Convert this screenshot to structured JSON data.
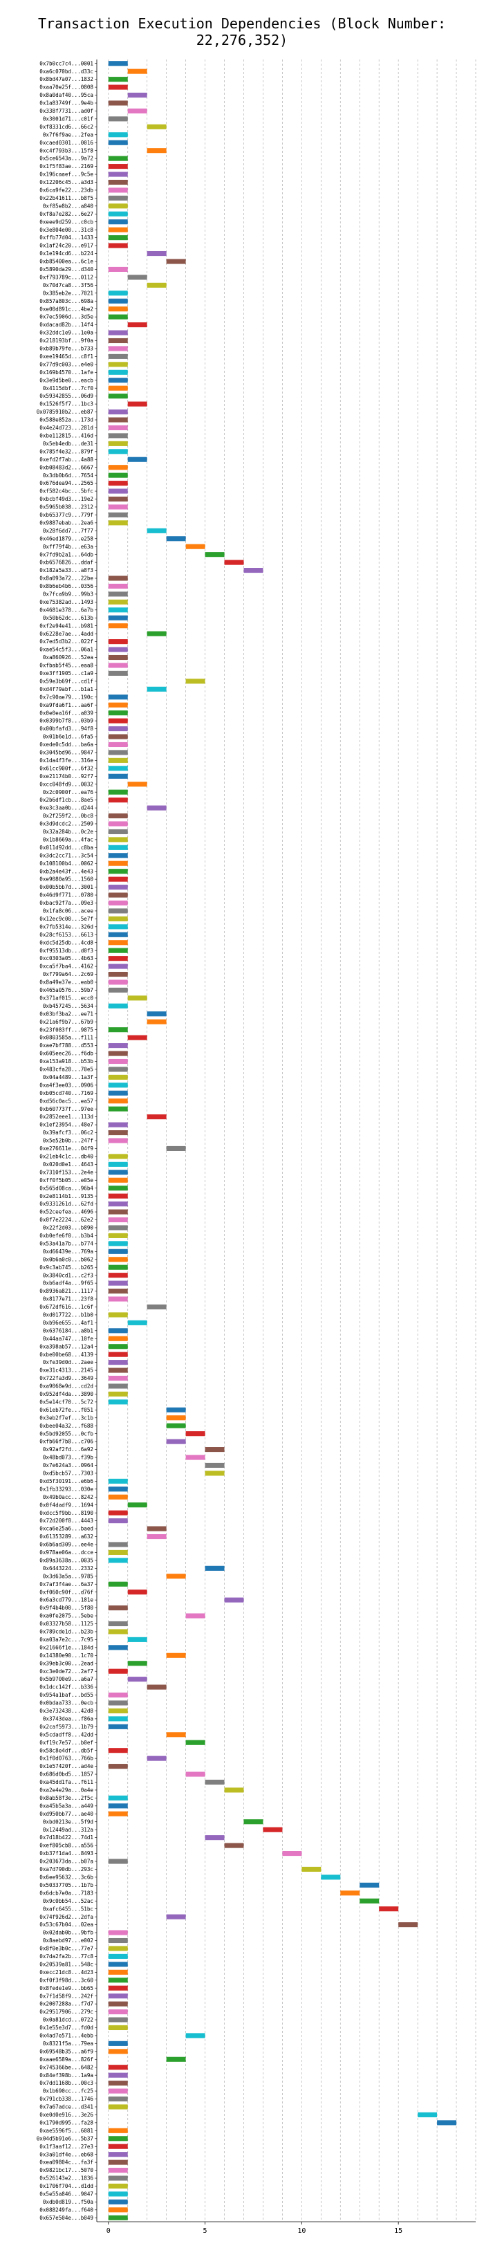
{
  "chart_data": {
    "type": "bar",
    "orientation": "horizontal",
    "title": "Transaction Execution Dependencies (Block Number: 22,276,352)",
    "xlabel": "",
    "ylabel": "",
    "xlim": [
      -0.6,
      19
    ],
    "xticks": [
      0,
      5,
      10,
      15
    ],
    "grid": true,
    "palette": [
      "#1f77b4",
      "#ff7f0e",
      "#2ca02c",
      "#d62728",
      "#9467bd",
      "#8c564b",
      "#e377c2",
      "#7f7f7f",
      "#bcbd22",
      "#17becf"
    ],
    "categories": [
      "0x7b0cc7c4...0001",
      "0xa6c070bd...d33c",
      "0x8bd47a07...1832",
      "0xaa70e25f...0808",
      "0x8a0daf40...95ca",
      "0x1a83749f...9e4b",
      "0x338f7731...ad0f",
      "0x3001d71...c01f",
      "0xf8331cd6...66c2",
      "0x7f6f9ae...2fea",
      "0xcaed0301...0016",
      "0xc4f793b3...15f8",
      "0x5ce6543a...9a72",
      "0x1f5f83ae...2169",
      "0x196caaef...9c5e",
      "0x12206c45...a3d3",
      "0x6ca9fe22...23db",
      "0x22b41611...b8f5",
      "0xf85e8b2...a840",
      "0xf8a7e282...6e27",
      "0xeee9d259...c0cb",
      "0x3e804e00...31c8",
      "0xffb77d04...1433",
      "0x1af24c20...e917",
      "0x1e194cd6...b224",
      "0xb85400ea...6c1e",
      "0x5890da29...d340",
      "0xf793789c...0112",
      "0x70d7ca8...3f56",
      "0x385eb2e...7021",
      "0x857a803c...698a",
      "0xe00d891c...4be2",
      "0x7ec5906d...3d5e",
      "0xdacad82b...14f4",
      "0x32ddc1e9...1e0a",
      "0x218193bf...9f0a",
      "0xb89b79fe...b733",
      "0xee19465d...c8f1",
      "0x77d9c003...e4e0",
      "0x169b4570...1afe",
      "0x3e9d5be0...eacb",
      "0x4115dbf...7cf0",
      "0x59342855...06d9",
      "0x1526f5f7...1bc3",
      "0x0785910b2...eb87",
      "0x588e852a...173d",
      "0x4e24d723...281d",
      "0xbe112815...416d",
      "0x5eb4edb...de31",
      "0x785f4e32...879f",
      "0xefd2f7ab...4a88",
      "0xb08483d2...6667",
      "0x3db0b6d...7654",
      "0x676dea94...2565",
      "0xf582c4bc...5bfc",
      "0xbcbf49d3...19e2",
      "0x5965b038...2312",
      "0xb65377c9...779f",
      "0x9887ebab...2ea6",
      "0x28f6dd7...7f77",
      "0x46ed1879...e258",
      "0xff79f4b...e63a",
      "0x7fd9b2a1...64db",
      "0xb6576826...ddaf",
      "0x182a5a33...a8f3",
      "0x8a093a72...22be",
      "0x8b6eb4b6...0356",
      "0x7fca9b9...99b3",
      "0xe75382ad...1493",
      "0x4681e378...6a7b",
      "0x50b62dc...613b",
      "0xf2e94e41...b981",
      "0x6228e7ae...4add",
      "0x7ed5d3b2...022f",
      "0xae54c5f3...06a1",
      "0xa860926...52ea",
      "0xfbab5f45...eaa8",
      "0xe3ff1905...c1a9",
      "0x59e3b69f...cd1f",
      "0xd4f79abf...b1a1",
      "0x7c90ae79...190c",
      "0xa9fda6f1...aa6f",
      "0x0e0ea16f...a039",
      "0x0399b7f8...03b9",
      "0x00bfafd3...94f8",
      "0x01b6e1d...6fa5",
      "0xede0c5dd...ba6a",
      "0x3045bd96...9847",
      "0x1da4f3fe...316e",
      "0x61cc900f...6f32",
      "0xe21174b0...92f7",
      "0xcc048fd9...0032",
      "0x2c0900f...ea76",
      "0x2b6df1cb...8ae5",
      "0xe3c3aa0b...d244",
      "0x2f259f2...0bc8",
      "0x3d9dcdc2...2509",
      "0x32a284b...0c2e",
      "0x1b8669a...4fac",
      "0x011d92dd...c8ba",
      "0x3dc2cc71...3c54",
      "0x108100b4...0062",
      "0xb2a4e43f...4e43",
      "0xe9080a95...1560",
      "0x00b5bb7d...3001",
      "0x46d9f771...0780",
      "0xbac92f7a...09e3",
      "0x1fa8c06...acee",
      "0x12ec9c00...5e7f",
      "0x7fb5314e...326d",
      "0x28cf6153...6613",
      "0xdc5d25db...4cd8",
      "0xf95513db...d0f3",
      "0xc0303a05...4b63",
      "0xca5f7ba4...4162",
      "0xf799a64...2c69",
      "0x8a49e37e...eab0",
      "0x465a0576...59b7",
      "0x371af015...ecc0",
      "0xb457245...5634",
      "0x03bf3ba2...ee71",
      "0x21a6f9b7...67b9",
      "0x23f083ff...9875",
      "0x0803585a...f111",
      "0xae7bf788...d553",
      "0x605eec26...f6db",
      "0xa153a918...b53b",
      "0x483cfa28...70e5",
      "0x04a4489...1a3f",
      "0xa4f3ee03...0906",
      "0xb05cd740...7169",
      "0xd56c0ac5...ea57",
      "0xb607737f...97ee",
      "0x2852eee1...113d",
      "0x1ef23954...48e7",
      "0x39afcf3...06c2",
      "0x5e52b0b...247f",
      "0xe276611e...04f9",
      "0x21eb4c1c...db40",
      "0x020d0e1...4643",
      "0x7310f153...2e4e",
      "0xff0f5b05...e05e",
      "0x565d08ca...96b4",
      "0x2e8114b1...9135",
      "0x9331261d...62fd",
      "0x52ceefea...4696",
      "0x0f7e2224...62e2",
      "0x22f2d03...b890",
      "0xb0efe6f0...b3b4",
      "0x53a41a7b...b774",
      "0xd66439e...769a",
      "0x0b6a0c0...b062",
      "0x9c3ab745...b265",
      "0x3840cd1...c2f3",
      "0xb6adf4a...9f65",
      "0x8936a821...1117",
      "0x8177e71...23f8",
      "0x672df616...1c6f",
      "0xd017722...b1b0",
      "0xb96e655...4af1",
      "0x6376184...a8b1",
      "0x44aa747...10fe",
      "0xa398ab57...12a4",
      "0xbe00be68...4139",
      "0xfe39d0d...2aee",
      "0xe31c4313...2145",
      "0x722fa3d9...3649",
      "0xa9068e9d...cd2d",
      "0x952df4da...3890",
      "0x5e14cf70...5c72",
      "0x61eb72fe...f051",
      "0x3eb2f7ef...3c1b",
      "0xbee04a32...f688",
      "0x5bd92055...0cfb",
      "0xfb66f7b8...c706",
      "0x92af2fd...6a92",
      "0x48bd073...f39b",
      "0x7e624a3...0964",
      "0xd5bcb57...7303",
      "0xd5f30191...e6b6",
      "0x1fb33293...030e",
      "0x49b0acc...8242",
      "0x0f4dadf9...1694",
      "0xdcc5f9bb...8190",
      "0x72d200f8...4443",
      "0xca6e25a6...baed",
      "0x61353289...a632",
      "0x6b6ad309...ee4e",
      "0x978ae06a...dcce",
      "0x89a3638a...0035",
      "0x6443224...2332",
      "0x3d63a5a...9785",
      "0x7af3f4ae...6a37",
      "0xf060c90f...d76f",
      "0x6a3cd779...181e",
      "0x9f4b4b00...5f80",
      "0xa0fe2075...5ebe",
      "0x03327b58...1125",
      "0x789cde1d...b23b",
      "0xa03a7e2c...7c95",
      "0x21666f1e...184d",
      "0x14380e90...1c70",
      "0x39eb3c00...2ead",
      "0xc3e0de72...2af7",
      "0x5b9700e9...a6a7",
      "0x1dcc142f...b336",
      "0x954a1baf...bd55",
      "0x0bdaa733...0ecb",
      "0x3e732438...42d8",
      "0x3743dea...f86a",
      "0x2caf5973...1b79",
      "0x5cdadff8...42dd",
      "0xf19c7e57...b0ef",
      "0x58c8e4df...db5f",
      "0x1f0d0763...766b",
      "0x1e57420f...ad4e",
      "0x686d0bd5...1857",
      "0xa45dd1fa...f611",
      "0xa2e4e29a...0a4e",
      "0x8ab58f3e...2f5c",
      "0xa45b5a3a...a449",
      "0xd950bb77...ae40",
      "0xbd0213e...5f9d",
      "0x12449ad...312a",
      "0x7d18b422...74d1",
      "0xef805cb8...a556",
      "0xb37f1da4...8493",
      "0x203673da...b07a",
      "0xa7d790db...293c",
      "0x6ee95632...3c6b",
      "0x50337705...1b7b",
      "0x6dcb7e0a...7183",
      "0x9c0bb54...52ac",
      "0xafc6455...51bc",
      "0x74f926d2...2dfa",
      "0x53c67b04...02ea",
      "0x02dab0b...9bfb",
      "0x8aebd97...e002",
      "0x8f0e3b0c...77e7",
      "0x7da2fa2b...77c8",
      "0x20539a81...548c",
      "0xecc21dc8...4d23",
      "0xf0f3f98d...3c60",
      "0x8fede1e9...bb65",
      "0x7f1d58f9...242f",
      "0x2007288a...f7d7",
      "0x29517906...279c",
      "0x0a81dcd...0722",
      "0x1e55e3d7...fd0d",
      "0x4ad7e571...4ebb",
      "0x8321f5a...79ea",
      "0x69548b35...a6f9",
      "0xaae6589a...826f",
      "0x745366be...6482",
      "0x84ef398b...1a9a",
      "0x7dd1168b...00c3",
      "0x1b690cc...fc25",
      "0x791cb338...1746",
      "0x7a67adce...d341",
      "0xe0d0e916...3e26",
      "0x1790d995...fa28",
      "0xae5596f5...6081",
      "0x04d5b91e6...5b37",
      "0x1f3aaf12...27e3",
      "0x3a01df4e...eb68",
      "0xea09804c...fa3f",
      "0x9821bc17...5070",
      "0x526143e2...1836",
      "0x1706f704...d1dd",
      "0x5e55a846...9047",
      "0xdb0d819...f50a",
      "0x088249fa...f640",
      "0x657e504e...b049"
    ],
    "start": [
      0,
      1,
      0,
      0,
      1,
      0,
      1,
      0,
      2,
      0,
      0,
      2,
      0,
      0,
      0,
      0,
      0,
      0,
      0,
      0,
      0,
      0,
      0,
      0,
      2,
      3,
      0,
      1,
      2,
      0,
      0,
      0,
      0,
      1,
      0,
      0,
      0,
      0,
      0,
      0,
      0,
      0,
      0,
      1,
      0,
      0,
      0,
      0,
      0,
      0,
      1,
      0,
      0,
      0,
      0,
      0,
      0,
      0,
      0,
      2,
      3,
      4,
      5,
      6,
      7,
      0,
      0,
      0,
      0,
      0,
      0,
      0,
      2,
      0,
      0,
      0,
      0,
      0,
      4,
      2,
      0,
      0,
      0,
      0,
      0,
      0,
      0,
      0,
      0,
      0,
      0,
      1,
      0,
      0,
      2,
      0,
      0,
      0,
      0,
      0,
      0,
      0,
      0,
      0,
      0,
      0,
      0,
      0,
      0,
      0,
      0,
      0,
      0,
      0,
      0,
      0,
      0,
      0,
      1,
      0,
      2,
      2,
      0,
      1,
      0,
      0,
      0,
      0,
      0,
      0,
      0,
      0,
      0,
      2,
      0,
      0,
      0,
      3,
      0,
      0,
      0,
      0,
      0,
      0,
      0,
      0,
      0,
      0,
      0,
      0,
      0,
      0,
      0,
      0,
      0,
      0,
      0,
      2,
      0,
      1,
      0,
      0,
      0,
      0,
      0,
      0,
      0,
      0,
      0,
      0,
      3,
      3,
      3,
      4,
      3,
      5,
      4,
      5,
      5,
      0,
      0,
      0,
      1,
      0,
      0,
      2,
      2,
      0,
      0,
      0,
      5,
      3,
      0,
      1,
      6,
      0,
      4,
      0,
      0,
      1,
      0,
      3,
      1,
      0,
      1,
      2,
      0,
      0,
      0,
      0,
      0,
      3,
      4,
      0,
      2,
      0,
      4,
      5,
      6,
      0,
      0,
      0,
      7,
      8,
      5,
      6,
      9,
      0,
      10,
      11,
      13,
      12,
      13,
      14,
      3,
      15,
      0,
      0,
      0,
      0,
      0,
      0,
      0,
      0,
      0,
      0,
      0,
      0,
      0,
      4,
      0,
      0,
      3,
      0,
      0,
      0,
      0,
      0,
      0,
      16,
      17,
      0,
      0,
      0,
      0,
      0,
      0,
      0,
      0,
      0,
      0,
      0,
      0
    ],
    "level": [
      1,
      1,
      1,
      1,
      1,
      1,
      1,
      1,
      1,
      1,
      1,
      1,
      1,
      1,
      1,
      1,
      1,
      1,
      1,
      1,
      1,
      1,
      1,
      1,
      1,
      1,
      1,
      1,
      1,
      1,
      1,
      1,
      1,
      1,
      1,
      1,
      1,
      1,
      1,
      1,
      1,
      1,
      1,
      1,
      1,
      1,
      1,
      1,
      1,
      1,
      1,
      1,
      1,
      1,
      1,
      1,
      1,
      1,
      1,
      1,
      1,
      1,
      1,
      1,
      1,
      1,
      1,
      1,
      1,
      1,
      1,
      1,
      1,
      1,
      1,
      1,
      1,
      1,
      1,
      1,
      1,
      1,
      1,
      1,
      1,
      1,
      1,
      1,
      1,
      1,
      1,
      1,
      1,
      1,
      1,
      1,
      1,
      1,
      1,
      1,
      1,
      1,
      1,
      1,
      1,
      1,
      1,
      1,
      1,
      1,
      1,
      1,
      1,
      1,
      1,
      1,
      1,
      1,
      1,
      1,
      1,
      1,
      1,
      1,
      1,
      1,
      1,
      1,
      1,
      1,
      1,
      1,
      1,
      1,
      1,
      1,
      1,
      1,
      1,
      1,
      1,
      1,
      1,
      1,
      1,
      1,
      1,
      1,
      1,
      1,
      1,
      1,
      1,
      1,
      1,
      1,
      1,
      1,
      1,
      1,
      1,
      1,
      1,
      1,
      1,
      1,
      1,
      1,
      1,
      1,
      1,
      1,
      1,
      1,
      1,
      1,
      1,
      1,
      1,
      1,
      1,
      1,
      1,
      1,
      1,
      1,
      1,
      1,
      1,
      1,
      1,
      1,
      1,
      1,
      1,
      1,
      1,
      1,
      1,
      1,
      1,
      1,
      1,
      1,
      1,
      1,
      1,
      1,
      1,
      1,
      1,
      1,
      1,
      1,
      1,
      1,
      1,
      1,
      1,
      1,
      1,
      1,
      1,
      1,
      1,
      1,
      1,
      1,
      1,
      1,
      1,
      1,
      1,
      1,
      1,
      1,
      1,
      1,
      1,
      1,
      1,
      1,
      1,
      1,
      1,
      1,
      1,
      1,
      1,
      1,
      1,
      1,
      1,
      1,
      1,
      1,
      1,
      1,
      1,
      1,
      1,
      1,
      1,
      1,
      1,
      1,
      1,
      1,
      1,
      1,
      1,
      1,
      1
    ],
    "color_index": [
      0,
      1,
      2,
      3,
      4,
      5,
      6,
      7,
      8,
      9,
      0,
      1,
      2,
      3,
      4,
      5,
      6,
      7,
      8,
      9,
      0,
      1,
      2,
      3,
      4,
      5,
      6,
      7,
      8,
      9,
      0,
      1,
      2,
      3,
      4,
      5,
      6,
      7,
      8,
      9,
      0,
      1,
      2,
      3,
      4,
      5,
      6,
      7,
      8,
      9,
      0,
      1,
      2,
      3,
      4,
      5,
      6,
      7,
      8,
      9,
      0,
      1,
      2,
      3,
      4,
      5,
      6,
      7,
      8,
      9,
      0,
      1,
      2,
      3,
      4,
      5,
      6,
      7,
      8,
      9,
      0,
      1,
      2,
      3,
      4,
      5,
      6,
      7,
      8,
      9,
      0,
      1,
      2,
      3,
      4,
      5,
      6,
      7,
      8,
      9,
      0,
      1,
      2,
      3,
      4,
      5,
      6,
      7,
      8,
      9,
      0,
      1,
      2,
      3,
      4,
      5,
      6,
      7,
      8,
      9,
      0,
      1,
      2,
      3,
      4,
      5,
      6,
      7,
      8,
      9,
      0,
      1,
      2,
      3,
      4,
      5,
      6,
      7,
      8,
      9,
      0,
      1,
      2,
      3,
      4,
      5,
      6,
      7,
      8,
      9,
      0,
      1,
      2,
      3,
      4,
      5,
      6,
      7,
      8,
      9,
      0,
      1,
      2,
      3,
      4,
      5,
      6,
      7,
      8,
      9,
      0,
      1,
      2,
      3,
      4,
      5,
      6,
      7,
      8,
      9,
      0,
      1,
      2,
      3,
      4,
      5,
      6,
      7,
      8,
      9,
      0,
      1,
      2,
      3,
      4,
      5,
      6,
      7,
      8,
      9,
      0,
      1,
      2,
      3,
      4,
      5,
      6,
      7,
      8,
      9,
      0,
      1,
      2,
      3,
      4,
      5,
      6,
      7,
      8,
      9,
      0,
      1,
      2,
      3,
      4,
      5,
      6,
      7,
      8,
      9,
      0,
      1,
      2,
      3,
      4,
      5,
      6,
      7,
      8,
      9,
      0,
      1,
      2,
      3,
      4,
      5,
      6,
      7,
      8,
      9,
      0,
      1,
      2,
      3,
      4,
      5,
      6,
      7,
      8,
      9,
      0,
      1,
      2,
      3,
      4,
      5,
      6,
      7,
      8,
      9,
      0,
      1,
      2
    ]
  }
}
